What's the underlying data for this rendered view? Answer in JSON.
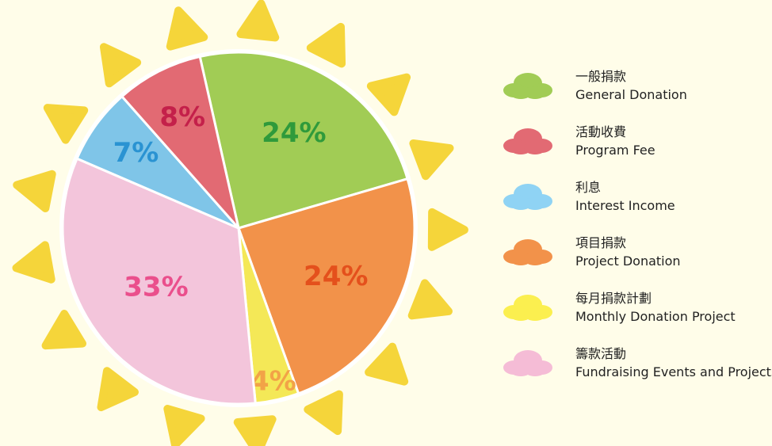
{
  "chart_data": {
    "type": "pie",
    "categories": [
      {
        "zh": "一般捐款",
        "en": "General Donation"
      },
      {
        "zh": "活動收費",
        "en": "Program Fee"
      },
      {
        "zh": "利息",
        "en": "Interest Income"
      },
      {
        "zh": "項目捐款",
        "en": "Project Donation"
      },
      {
        "zh": "每月捐款計劃",
        "en": "Monthly Donation Project"
      },
      {
        "zh": "籌款活動",
        "en": "Fundraising Events and Projects"
      }
    ],
    "values": [
      24,
      8,
      7,
      24,
      4,
      33
    ],
    "value_labels": [
      "24%",
      "8%",
      "7%",
      "24%",
      "4%",
      "33%"
    ],
    "colors": [
      "#a1cc55",
      "#e26a73",
      "#7fc5e8",
      "#f2924a",
      "#f4e857",
      "#f3c5db"
    ],
    "legend_colors": [
      "#a1cc55",
      "#e26a73",
      "#8fd3f4",
      "#f2924a",
      "#fbef4f",
      "#f5bcd6"
    ],
    "label_colors": [
      "#2f9a3b",
      "#c4204a",
      "#2a93d2",
      "#e4501c",
      "#f2a347",
      "#ea4f8c"
    ]
  }
}
